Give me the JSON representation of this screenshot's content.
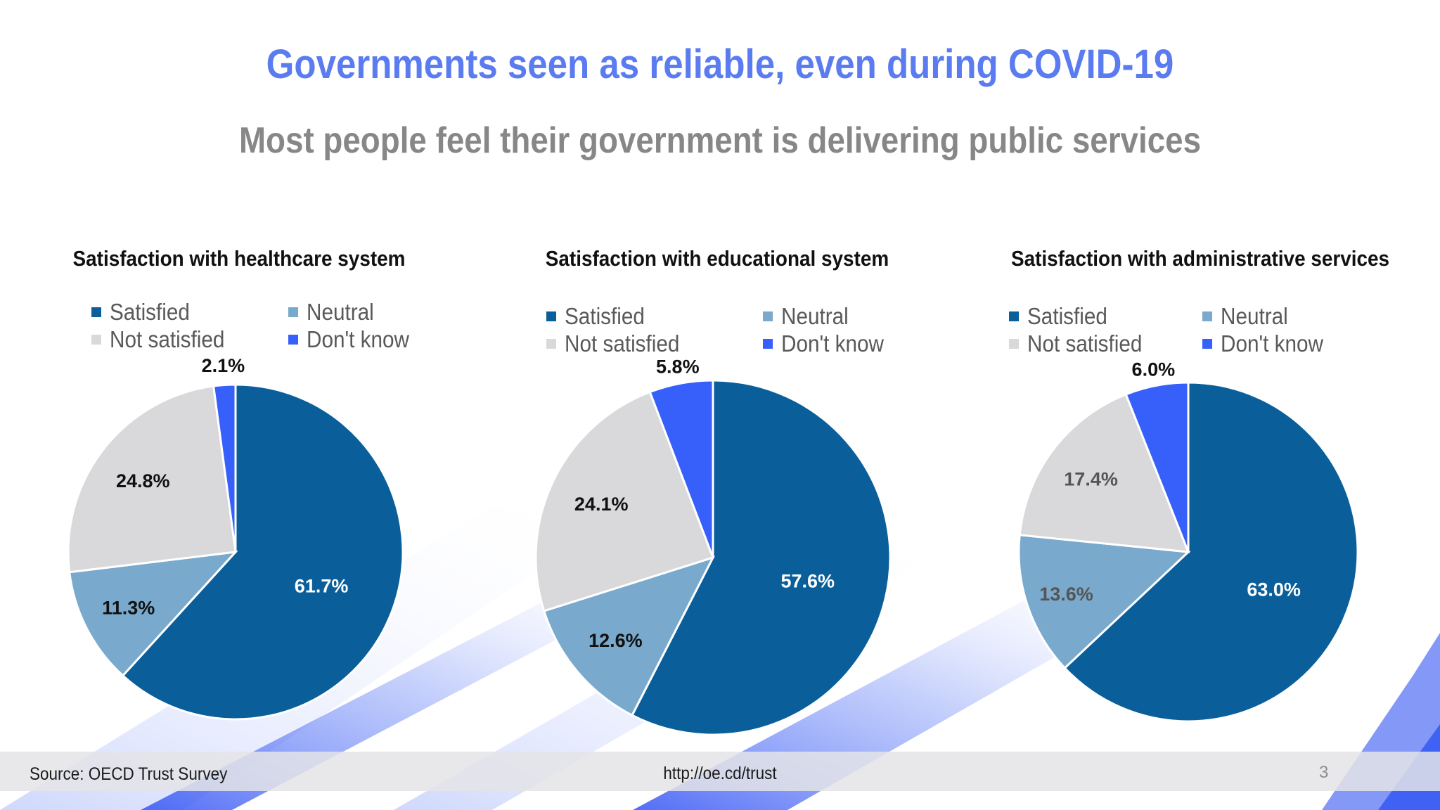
{
  "slide": {
    "title": "Governments seen as reliable, even during COVID-19",
    "subtitle": "Most people feel their government is delivering public services",
    "colors": {
      "title": "#5b7cf1",
      "subtitle": "#878787",
      "satisfied": "#0a5f9b",
      "neutral": "#79a9cc",
      "not_satisfied": "#d9d9db",
      "dont_know": "#3660f9"
    }
  },
  "chart_data": [
    {
      "type": "pie",
      "title": "Satisfaction with healthcare system",
      "legend": [
        "Satisfied",
        "Neutral",
        "Not satisfied",
        "Don't know"
      ],
      "series": [
        {
          "name": "Satisfied",
          "value": 61.7,
          "label": "61.7%"
        },
        {
          "name": "Neutral",
          "value": 11.3,
          "label": "11.3%"
        },
        {
          "name": "Not satisfied",
          "value": 24.8,
          "label": "24.8%"
        },
        {
          "name": "Don't know",
          "value": 2.1,
          "label": "2.1%"
        }
      ]
    },
    {
      "type": "pie",
      "title": "Satisfaction with educational system",
      "legend": [
        "Satisfied",
        "Neutral",
        "Not satisfied",
        "Don't know"
      ],
      "series": [
        {
          "name": "Satisfied",
          "value": 57.6,
          "label": "57.6%"
        },
        {
          "name": "Neutral",
          "value": 12.6,
          "label": "12.6%"
        },
        {
          "name": "Not satisfied",
          "value": 24.1,
          "label": "24.1%"
        },
        {
          "name": "Don't know",
          "value": 5.8,
          "label": "5.8%"
        }
      ]
    },
    {
      "type": "pie",
      "title": "Satisfaction with administrative services",
      "legend": [
        "Satisfied",
        "Neutral",
        "Not satisfied",
        "Don't know"
      ],
      "series": [
        {
          "name": "Satisfied",
          "value": 63.0,
          "label": "63.0%"
        },
        {
          "name": "Neutral",
          "value": 13.6,
          "label": "13.6%"
        },
        {
          "name": "Not satisfied",
          "value": 17.4,
          "label": "17.4%"
        },
        {
          "name": "Don't know",
          "value": 6.0,
          "label": "6.0%"
        }
      ]
    }
  ],
  "footer": {
    "source": "Source: OECD Trust Survey",
    "url": "http://oe.cd/trust",
    "page_number": "3"
  }
}
